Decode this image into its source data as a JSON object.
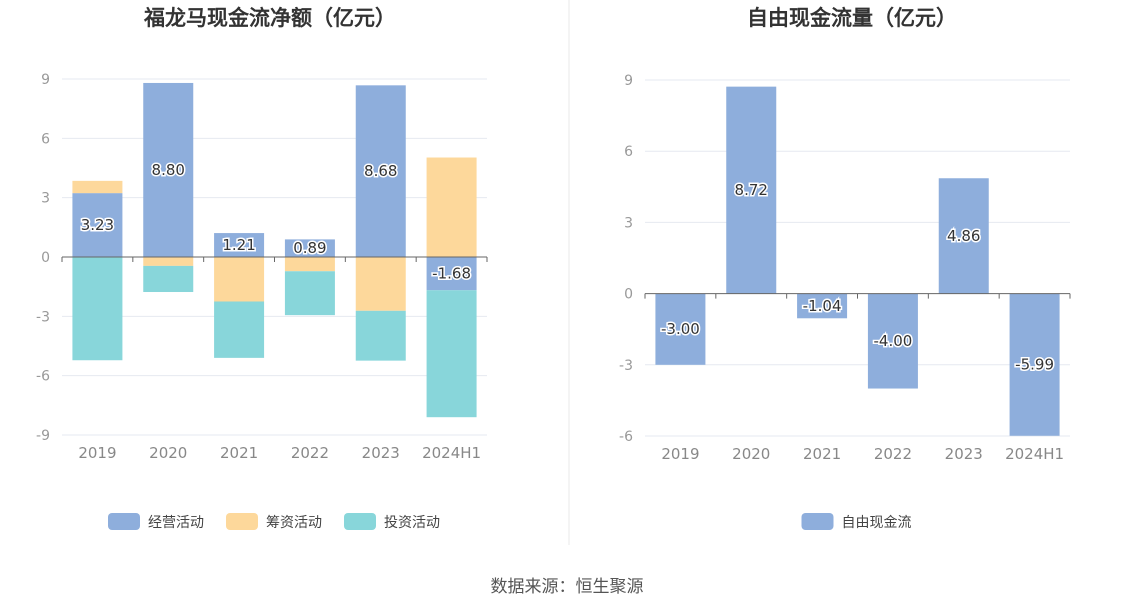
{
  "source_text": "数据来源：恒生聚源",
  "colors": {
    "operating": "#8eaedc",
    "financing": "#fdd89b",
    "investing": "#88d6da",
    "free_cash": "#8eaedc",
    "grid": "#e6e9f0",
    "axis": "#666666"
  },
  "chart_data": [
    {
      "type": "bar",
      "stacked": true,
      "title": "福龙马现金流净额（亿元）",
      "categories": [
        "2019",
        "2020",
        "2021",
        "2022",
        "2023",
        "2024H1"
      ],
      "ylim": [
        -9,
        9
      ],
      "yticks": [
        9,
        6,
        3,
        0,
        -3,
        -6,
        -9
      ],
      "grid": true,
      "legend_position": "bottom",
      "series": [
        {
          "name": "经营活动",
          "color_key": "operating",
          "values": [
            3.23,
            8.8,
            1.21,
            0.89,
            8.68,
            -1.68
          ],
          "labels": [
            "3.23",
            "8.80",
            "1.21",
            "0.89",
            "8.68",
            "-1.68"
          ]
        },
        {
          "name": "筹资活动",
          "color_key": "financing",
          "values": [
            0.62,
            -0.45,
            -2.25,
            -0.72,
            -2.72,
            5.03
          ]
        },
        {
          "name": "投资活动",
          "color_key": "investing",
          "values": [
            -5.22,
            -1.32,
            -2.85,
            -2.22,
            -2.52,
            -6.42
          ]
        }
      ]
    },
    {
      "type": "bar",
      "title": "自由现金流量（亿元）",
      "categories": [
        "2019",
        "2020",
        "2021",
        "2022",
        "2023",
        "2024H1"
      ],
      "ylim": [
        -6,
        9
      ],
      "yticks": [
        9,
        6,
        3,
        0,
        -3,
        -6
      ],
      "grid": true,
      "legend_position": "bottom",
      "series": [
        {
          "name": "自由现金流",
          "color_key": "free_cash",
          "values": [
            -3.0,
            8.72,
            -1.04,
            -4.0,
            4.86,
            -5.99
          ],
          "labels": [
            "-3.00",
            "8.72",
            "-1.04",
            "-4.00",
            "4.86",
            "-5.99"
          ]
        }
      ]
    }
  ]
}
